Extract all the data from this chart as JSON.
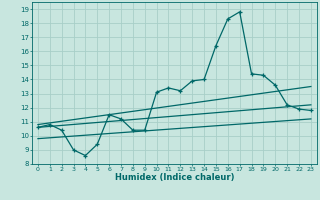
{
  "xlabel": "Humidex (Indice chaleur)",
  "bg_color": "#c8e6df",
  "grid_color": "#a8cfc8",
  "line_color": "#006868",
  "xlim": [
    -0.5,
    23.5
  ],
  "ylim": [
    8,
    19.5
  ],
  "xticks": [
    0,
    1,
    2,
    3,
    4,
    5,
    6,
    7,
    8,
    9,
    10,
    11,
    12,
    13,
    14,
    15,
    16,
    17,
    18,
    19,
    20,
    21,
    22,
    23
  ],
  "yticks": [
    8,
    9,
    10,
    11,
    12,
    13,
    14,
    15,
    16,
    17,
    18,
    19
  ],
  "series1_x": [
    0,
    1,
    2,
    3,
    4,
    5,
    6,
    7,
    8,
    9,
    10,
    11,
    12,
    13,
    14,
    15,
    16,
    17,
    18,
    19,
    20,
    21,
    22,
    23
  ],
  "series1_y": [
    10.6,
    10.8,
    10.4,
    9.0,
    8.6,
    9.4,
    11.5,
    11.2,
    10.4,
    10.4,
    13.1,
    13.4,
    13.2,
    13.9,
    14.0,
    16.4,
    18.3,
    18.8,
    14.4,
    14.3,
    13.6,
    12.2,
    11.9,
    11.8
  ],
  "series2_x": [
    0,
    23
  ],
  "series2_y": [
    10.8,
    13.5
  ],
  "series3_x": [
    0,
    23
  ],
  "series3_y": [
    10.6,
    12.2
  ],
  "series4_x": [
    0,
    23
  ],
  "series4_y": [
    9.8,
    11.2
  ]
}
